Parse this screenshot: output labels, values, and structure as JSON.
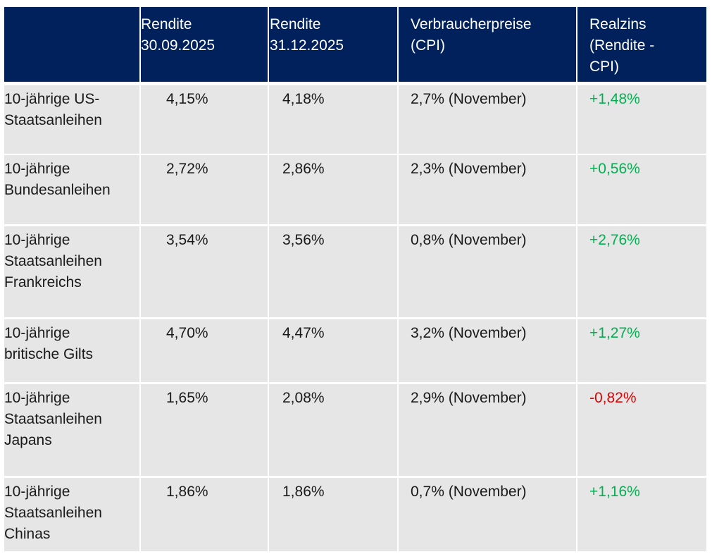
{
  "table": {
    "header": [
      [],
      [
        "Rendite",
        "30.09.2025"
      ],
      [
        "Rendite",
        "31.12.2025"
      ],
      [
        "Verbraucherpreise",
        "(CPI)"
      ],
      [
        "Realzins",
        "(Rendite -",
        "CPI)"
      ]
    ],
    "rows": [
      {
        "label": [
          "10-jährige US-",
          "Staatsanleihen"
        ],
        "cells": [
          "4,15%",
          "4,18%",
          "2,7% (November)"
        ],
        "realzins": {
          "text": "+1,48%",
          "color": "#00b050"
        }
      },
      {
        "label": [
          "10-jährige",
          "Bundesanleihen"
        ],
        "cells": [
          "2,72%",
          "2,86%",
          "2,3% (November)"
        ],
        "realzins": {
          "text": "+0,56%",
          "color": "#00b050"
        }
      },
      {
        "label": [
          "10-jährige",
          "Staatsanleihen",
          "Frankreichs"
        ],
        "cells": [
          "3,54%",
          "3,56%",
          "0,8% (November)"
        ],
        "realzins": {
          "text": "+2,76%",
          "color": "#00b050"
        }
      },
      {
        "label": [
          "10-jährige",
          "britische Gilts"
        ],
        "cells": [
          "4,70%",
          "4,47%",
          "3,2% (November)"
        ],
        "realzins": {
          "text": "+1,27%",
          "color": "#00b050"
        }
      },
      {
        "label": [
          "10-jährige",
          "Staatsanleihen",
          "Japans"
        ],
        "cells": [
          "1,65%",
          "2,08%",
          "2,9% (November)"
        ],
        "realzins": {
          "text": "-0,82%",
          "color": "#e00000"
        }
      },
      {
        "label": [
          "10-jährige",
          "Staatsanleihen",
          "Chinas"
        ],
        "cells": [
          "1,86%",
          "1,86%",
          "0,7% (November)"
        ],
        "realzins": {
          "text": "+1,16%",
          "color": "#00b050"
        }
      }
    ]
  }
}
